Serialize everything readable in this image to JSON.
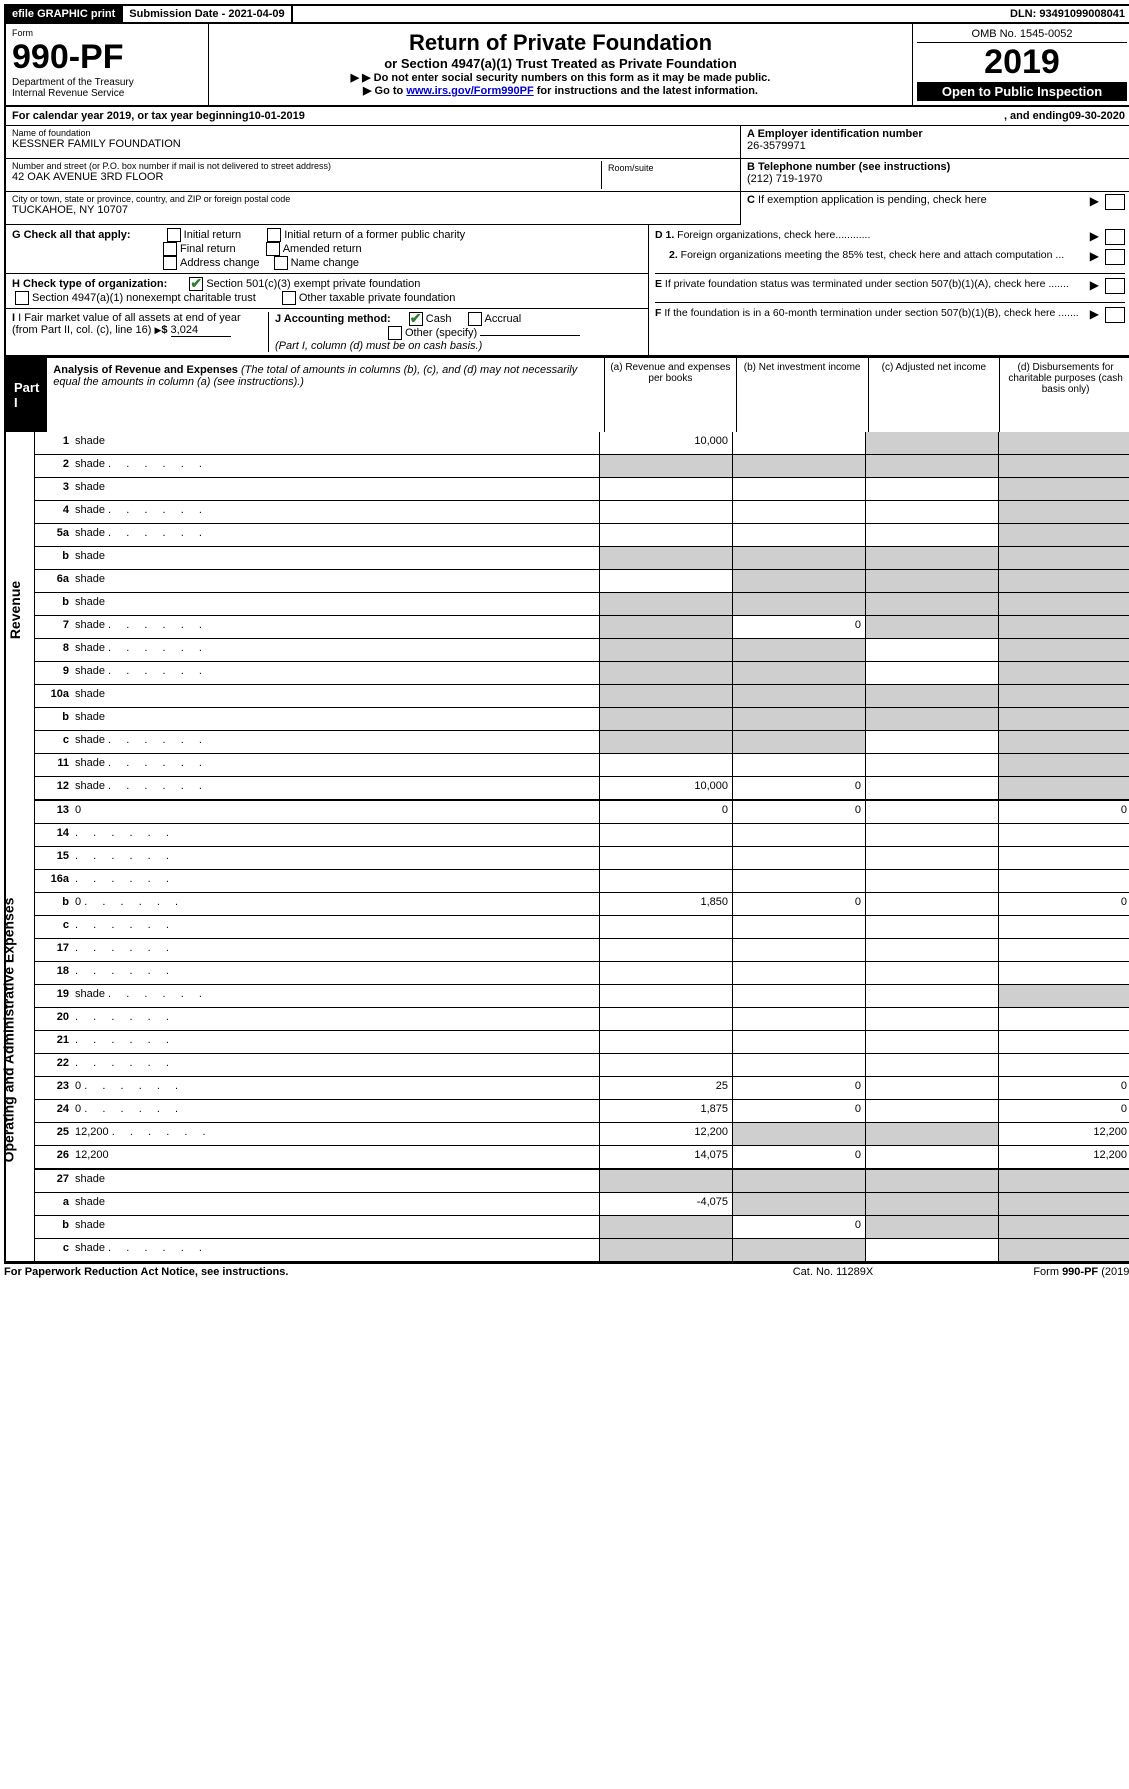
{
  "topbar": {
    "efile": "efile GRAPHIC print",
    "subdate_label": "Submission Date - ",
    "subdate": "2021-04-09",
    "dln_label": "DLN: ",
    "dln": "93491099008041"
  },
  "header": {
    "form_label": "Form",
    "form_no": "990-PF",
    "dept1": "Department of the Treasury",
    "dept2": "Internal Revenue Service",
    "title": "Return of Private Foundation",
    "subtitle": "or Section 4947(a)(1) Trust Treated as Private Foundation",
    "note1": "Do not enter social security numbers on this form as it may be made public.",
    "note2_pre": "Go to ",
    "note2_link": "www.irs.gov/Form990PF",
    "note2_post": " for instructions and the latest information.",
    "omb": "OMB No. 1545-0052",
    "year": "2019",
    "open": "Open to Public Inspection"
  },
  "cal": {
    "text_a": "For calendar year 2019, or tax year beginning ",
    "begin": "10-01-2019",
    "text_b": " , and ending ",
    "end": "09-30-2020"
  },
  "name": {
    "label": "Name of foundation",
    "value": "KESSNER FAMILY FOUNDATION"
  },
  "ein": {
    "label": "A Employer identification number",
    "value": "26-3579971"
  },
  "addr": {
    "label": "Number and street (or P.O. box number if mail is not delivered to street address)",
    "value": "42 OAK AVENUE 3RD FLOOR",
    "room_label": "Room/suite"
  },
  "tel": {
    "label": "B Telephone number (see instructions)",
    "value": "(212) 719-1970"
  },
  "city": {
    "label": "City or town, state or province, country, and ZIP or foreign postal code",
    "value": "TUCKAHOE, NY  10707"
  },
  "c_exempt": "C  If exemption application is pending, check here",
  "g": {
    "label": "G Check all that apply:",
    "opts": [
      "Initial return",
      "Initial return of a former public charity",
      "Final return",
      "Amended return",
      "Address change",
      "Name change"
    ]
  },
  "d": {
    "d1": "D 1. Foreign organizations, check here............",
    "d2": "2. Foreign organizations meeting the 85% test, check here and attach computation ..."
  },
  "h": {
    "label": "H Check type of organization:",
    "o1": "Section 501(c)(3) exempt private foundation",
    "o2": "Section 4947(a)(1) nonexempt charitable trust",
    "o3": "Other taxable private foundation"
  },
  "e": "E  If private foundation status was terminated under section 507(b)(1)(A), check here .......",
  "i": {
    "label": "I Fair market value of all assets at end of year (from Part II, col. (c), line 16)",
    "amount_label": "$",
    "amount": "3,024"
  },
  "j": {
    "label": "J Accounting method:",
    "cash": "Cash",
    "accrual": "Accrual",
    "other": "Other (specify)",
    "note": "(Part I, column (d) must be on cash basis.)"
  },
  "f": "F  If the foundation is in a 60-month termination under section 507(b)(1)(B), check here .......",
  "part1": {
    "badge": "Part I",
    "title": "Analysis of Revenue and Expenses",
    "note": "(The total of amounts in columns (b), (c), and (d) may not necessarily equal the amounts in column (a) (see instructions).)",
    "cols": {
      "a": "(a) Revenue and expenses per books",
      "b": "(b) Net investment income",
      "c": "(c) Adjusted net income",
      "d": "(d) Disbursements for charitable purposes (cash basis only)"
    }
  },
  "revenue_label": "Revenue",
  "expense_label": "Operating and Administrative Expenses",
  "lines": [
    {
      "n": "1",
      "d": "shade",
      "a": "10,000",
      "b": "",
      "c": "shade"
    },
    {
      "n": "2",
      "d": "shade",
      "a": "shade",
      "b": "shade",
      "c": "shade",
      "dots": true
    },
    {
      "n": "3",
      "d": "shade",
      "a": "",
      "b": "",
      "c": ""
    },
    {
      "n": "4",
      "d": "shade",
      "a": "",
      "b": "",
      "c": "",
      "dots": true
    },
    {
      "n": "5a",
      "d": "shade",
      "a": "",
      "b": "",
      "c": "",
      "dots": true
    },
    {
      "n": "b",
      "d": "shade",
      "a": "shade",
      "b": "shade",
      "c": "shade"
    },
    {
      "n": "6a",
      "d": "shade",
      "a": "",
      "b": "shade",
      "c": "shade"
    },
    {
      "n": "b",
      "d": "shade",
      "a": "shade",
      "b": "shade",
      "c": "shade"
    },
    {
      "n": "7",
      "d": "shade",
      "a": "shade",
      "b": "0",
      "c": "shade",
      "dots": true
    },
    {
      "n": "8",
      "d": "shade",
      "a": "shade",
      "b": "shade",
      "c": "",
      "dots": true
    },
    {
      "n": "9",
      "d": "shade",
      "a": "shade",
      "b": "shade",
      "c": "",
      "dots": true
    },
    {
      "n": "10a",
      "d": "shade",
      "a": "shade",
      "b": "shade",
      "c": "shade"
    },
    {
      "n": "b",
      "d": "shade",
      "a": "shade",
      "b": "shade",
      "c": "shade"
    },
    {
      "n": "c",
      "d": "shade",
      "a": "shade",
      "b": "shade",
      "c": "",
      "dots": true
    },
    {
      "n": "11",
      "d": "shade",
      "a": "",
      "b": "",
      "c": "",
      "dots": true
    },
    {
      "n": "12",
      "d": "shade",
      "a": "10,000",
      "b": "0",
      "c": "",
      "dots": true
    },
    {
      "n": "13",
      "d": "0",
      "a": "0",
      "b": "0",
      "c": ""
    },
    {
      "n": "14",
      "d": "",
      "a": "",
      "b": "",
      "c": "",
      "dots": true
    },
    {
      "n": "15",
      "d": "",
      "a": "",
      "b": "",
      "c": "",
      "dots": true
    },
    {
      "n": "16a",
      "d": "",
      "a": "",
      "b": "",
      "c": "",
      "dots": true
    },
    {
      "n": "b",
      "d": "0",
      "a": "1,850",
      "b": "0",
      "c": "",
      "dots": true
    },
    {
      "n": "c",
      "d": "",
      "a": "",
      "b": "",
      "c": "",
      "dots": true
    },
    {
      "n": "17",
      "d": "",
      "a": "",
      "b": "",
      "c": "",
      "dots": true
    },
    {
      "n": "18",
      "d": "",
      "a": "",
      "b": "",
      "c": "",
      "dots": true
    },
    {
      "n": "19",
      "d": "shade",
      "a": "",
      "b": "",
      "c": "",
      "dots": true
    },
    {
      "n": "20",
      "d": "",
      "a": "",
      "b": "",
      "c": "",
      "dots": true
    },
    {
      "n": "21",
      "d": "",
      "a": "",
      "b": "",
      "c": "",
      "dots": true
    },
    {
      "n": "22",
      "d": "",
      "a": "",
      "b": "",
      "c": "",
      "dots": true
    },
    {
      "n": "23",
      "d": "0",
      "a": "25",
      "b": "0",
      "c": "",
      "dots": true
    },
    {
      "n": "24",
      "d": "0",
      "a": "1,875",
      "b": "0",
      "c": "",
      "dots": true
    },
    {
      "n": "25",
      "d": "12,200",
      "a": "12,200",
      "b": "shade",
      "c": "shade",
      "dots": true
    },
    {
      "n": "26",
      "d": "12,200",
      "a": "14,075",
      "b": "0",
      "c": ""
    },
    {
      "n": "27",
      "d": "shade",
      "a": "shade",
      "b": "shade",
      "c": "shade"
    },
    {
      "n": "a",
      "d": "shade",
      "a": "-4,075",
      "b": "shade",
      "c": "shade"
    },
    {
      "n": "b",
      "d": "shade",
      "a": "shade",
      "b": "0",
      "c": "shade"
    },
    {
      "n": "c",
      "d": "shade",
      "a": "shade",
      "b": "shade",
      "c": "",
      "dots": true
    }
  ],
  "footer": {
    "left": "For Paperwork Reduction Act Notice, see instructions.",
    "center": "Cat. No. 11289X",
    "right": "Form 990-PF (2019)"
  }
}
